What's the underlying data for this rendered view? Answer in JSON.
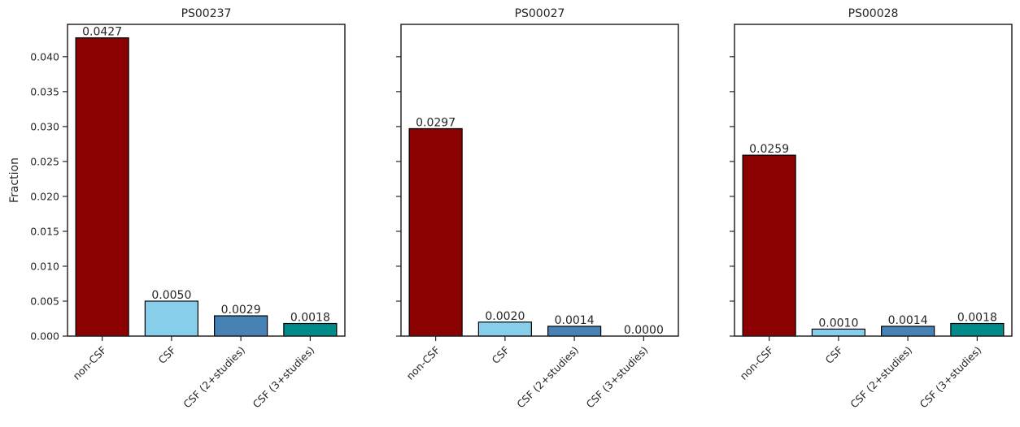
{
  "figure": {
    "ylabel": "Fraction"
  },
  "chart_data": [
    {
      "type": "bar",
      "title": "PS00237",
      "categories": [
        "non-CSF",
        "CSF",
        "CSF (2+studies)",
        "CSF (3+studies)"
      ],
      "values": [
        0.0427,
        0.005,
        0.0029,
        0.0018
      ],
      "value_labels": [
        "0.0427",
        "0.0050",
        "0.0029",
        "0.0018"
      ],
      "colors": [
        "#8b0000",
        "#87ceeb",
        "#4682b4",
        "#008b8b"
      ],
      "ylim": [
        0,
        0.04463
      ],
      "yticks": [
        0,
        0.005,
        0.01,
        0.015,
        0.02,
        0.025,
        0.03,
        0.035,
        0.04
      ],
      "ytick_labels": [
        "0.000",
        "0.005",
        "0.010",
        "0.015",
        "0.020",
        "0.025",
        "0.030",
        "0.035",
        "0.040"
      ],
      "show_ytick_labels": true,
      "grid": false
    },
    {
      "type": "bar",
      "title": "PS00027",
      "categories": [
        "non-CSF",
        "CSF",
        "CSF (2+studies)",
        "CSF (3+studies)"
      ],
      "values": [
        0.0297,
        0.002,
        0.0014,
        0.0
      ],
      "value_labels": [
        "0.0297",
        "0.0020",
        "0.0014",
        "0.0000"
      ],
      "colors": [
        "#8b0000",
        "#87ceeb",
        "#4682b4",
        "#008b8b"
      ],
      "ylim": [
        0,
        0.04463
      ],
      "yticks": [
        0,
        0.005,
        0.01,
        0.015,
        0.02,
        0.025,
        0.03,
        0.035,
        0.04
      ],
      "show_ytick_labels": false,
      "grid": false
    },
    {
      "type": "bar",
      "title": "PS00028",
      "categories": [
        "non-CSF",
        "CSF",
        "CSF (2+studies)",
        "CSF (3+studies)"
      ],
      "values": [
        0.0259,
        0.001,
        0.0014,
        0.0018
      ],
      "value_labels": [
        "0.0259",
        "0.0010",
        "0.0014",
        "0.0018"
      ],
      "colors": [
        "#8b0000",
        "#87ceeb",
        "#4682b4",
        "#008b8b"
      ],
      "ylim": [
        0,
        0.04463
      ],
      "yticks": [
        0,
        0.005,
        0.01,
        0.015,
        0.02,
        0.025,
        0.03,
        0.035,
        0.04
      ],
      "show_ytick_labels": false,
      "grid": false
    }
  ]
}
